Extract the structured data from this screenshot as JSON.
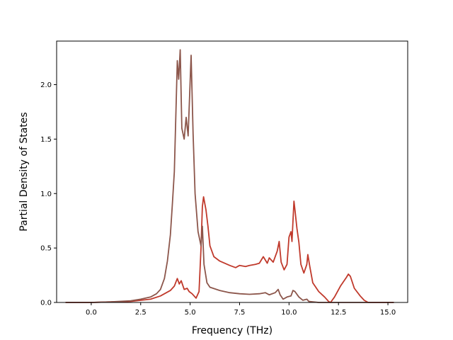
{
  "chart_data": {
    "type": "line",
    "title": "",
    "xlabel": "Frequency (THz)",
    "ylabel": "Partial Density of States",
    "xlim": [
      -1.75,
      16.0
    ],
    "ylim": [
      0.0,
      2.4
    ],
    "xticks": [
      0.0,
      2.5,
      5.0,
      7.5,
      10.0,
      12.5,
      15.0
    ],
    "xtick_labels": [
      "0.0",
      "2.5",
      "5.0",
      "7.5",
      "10.0",
      "12.5",
      "15.0"
    ],
    "yticks": [
      0.0,
      0.5,
      1.0,
      1.5,
      2.0
    ],
    "ytick_labels": [
      "0.0",
      "0.5",
      "1.0",
      "1.5",
      "2.0"
    ],
    "grid": false,
    "series": [
      {
        "color": "#c0392b",
        "points": [
          [
            -1.3,
            0.0
          ],
          [
            0.0,
            0.0
          ],
          [
            1.0,
            0.005
          ],
          [
            2.0,
            0.01
          ],
          [
            3.0,
            0.03
          ],
          [
            3.5,
            0.06
          ],
          [
            4.0,
            0.11
          ],
          [
            4.2,
            0.15
          ],
          [
            4.35,
            0.22
          ],
          [
            4.45,
            0.17
          ],
          [
            4.55,
            0.2
          ],
          [
            4.7,
            0.12
          ],
          [
            4.85,
            0.13
          ],
          [
            4.95,
            0.1
          ],
          [
            5.1,
            0.08
          ],
          [
            5.3,
            0.04
          ],
          [
            5.45,
            0.1
          ],
          [
            5.55,
            0.5
          ],
          [
            5.62,
            0.88
          ],
          [
            5.68,
            0.97
          ],
          [
            5.8,
            0.85
          ],
          [
            5.9,
            0.7
          ],
          [
            6.0,
            0.52
          ],
          [
            6.2,
            0.42
          ],
          [
            6.5,
            0.38
          ],
          [
            7.0,
            0.34
          ],
          [
            7.3,
            0.32
          ],
          [
            7.5,
            0.34
          ],
          [
            7.8,
            0.33
          ],
          [
            8.0,
            0.34
          ],
          [
            8.3,
            0.35
          ],
          [
            8.5,
            0.36
          ],
          [
            8.7,
            0.42
          ],
          [
            8.9,
            0.36
          ],
          [
            9.0,
            0.41
          ],
          [
            9.2,
            0.37
          ],
          [
            9.4,
            0.47
          ],
          [
            9.5,
            0.56
          ],
          [
            9.6,
            0.37
          ],
          [
            9.75,
            0.3
          ],
          [
            9.9,
            0.35
          ],
          [
            10.0,
            0.6
          ],
          [
            10.1,
            0.65
          ],
          [
            10.15,
            0.56
          ],
          [
            10.25,
            0.93
          ],
          [
            10.3,
            0.85
          ],
          [
            10.4,
            0.68
          ],
          [
            10.5,
            0.55
          ],
          [
            10.6,
            0.35
          ],
          [
            10.75,
            0.27
          ],
          [
            10.9,
            0.35
          ],
          [
            10.95,
            0.44
          ],
          [
            11.05,
            0.33
          ],
          [
            11.2,
            0.18
          ],
          [
            11.5,
            0.1
          ],
          [
            11.8,
            0.05
          ],
          [
            12.0,
            0.01
          ],
          [
            12.1,
            0.0
          ],
          [
            12.3,
            0.05
          ],
          [
            12.6,
            0.15
          ],
          [
            12.9,
            0.23
          ],
          [
            13.0,
            0.26
          ],
          [
            13.1,
            0.24
          ],
          [
            13.3,
            0.13
          ],
          [
            13.6,
            0.06
          ],
          [
            13.8,
            0.02
          ],
          [
            14.0,
            0.0
          ],
          [
            15.3,
            0.0
          ]
        ]
      },
      {
        "color": "#8c564b",
        "points": [
          [
            -1.3,
            0.0
          ],
          [
            0.0,
            0.0
          ],
          [
            1.0,
            0.005
          ],
          [
            2.0,
            0.015
          ],
          [
            2.5,
            0.03
          ],
          [
            3.0,
            0.05
          ],
          [
            3.3,
            0.08
          ],
          [
            3.5,
            0.12
          ],
          [
            3.7,
            0.22
          ],
          [
            3.85,
            0.38
          ],
          [
            4.0,
            0.62
          ],
          [
            4.1,
            0.9
          ],
          [
            4.2,
            1.2
          ],
          [
            4.35,
            2.22
          ],
          [
            4.42,
            2.05
          ],
          [
            4.5,
            2.32
          ],
          [
            4.58,
            1.6
          ],
          [
            4.7,
            1.5
          ],
          [
            4.8,
            1.7
          ],
          [
            4.9,
            1.53
          ],
          [
            5.05,
            2.27
          ],
          [
            5.15,
            1.55
          ],
          [
            5.25,
            1.0
          ],
          [
            5.4,
            0.65
          ],
          [
            5.55,
            0.52
          ],
          [
            5.62,
            0.7
          ],
          [
            5.7,
            0.35
          ],
          [
            5.85,
            0.18
          ],
          [
            6.0,
            0.14
          ],
          [
            6.5,
            0.11
          ],
          [
            7.0,
            0.09
          ],
          [
            7.5,
            0.08
          ],
          [
            8.0,
            0.075
          ],
          [
            8.5,
            0.08
          ],
          [
            8.8,
            0.09
          ],
          [
            9.0,
            0.07
          ],
          [
            9.3,
            0.09
          ],
          [
            9.45,
            0.12
          ],
          [
            9.55,
            0.07
          ],
          [
            9.7,
            0.03
          ],
          [
            9.9,
            0.05
          ],
          [
            10.1,
            0.06
          ],
          [
            10.2,
            0.11
          ],
          [
            10.3,
            0.1
          ],
          [
            10.5,
            0.05
          ],
          [
            10.7,
            0.02
          ],
          [
            10.9,
            0.03
          ],
          [
            11.0,
            0.01
          ],
          [
            11.5,
            0.0
          ],
          [
            15.3,
            0.0
          ]
        ]
      }
    ]
  }
}
